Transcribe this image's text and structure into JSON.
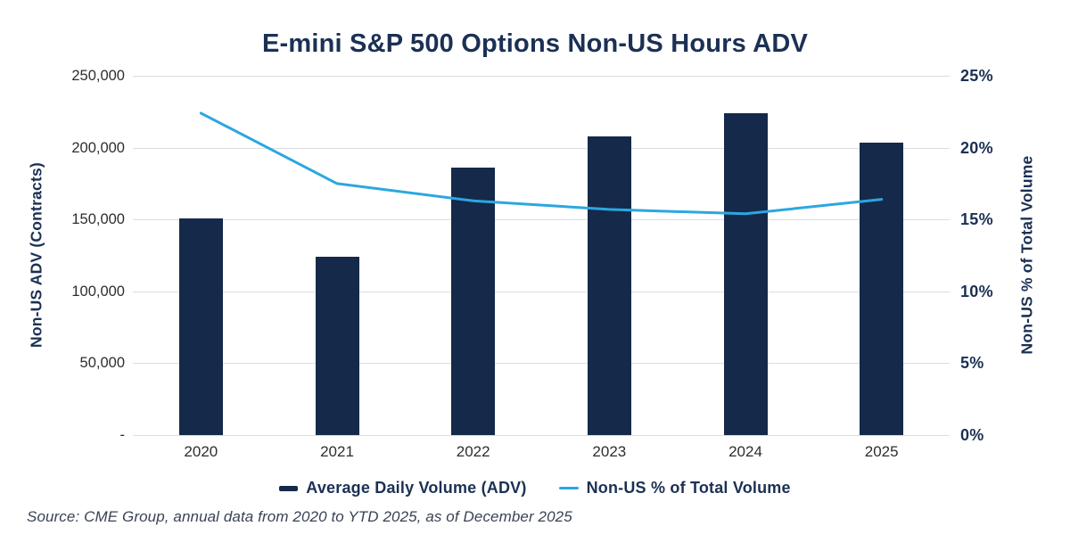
{
  "chart_data": {
    "type": "bar",
    "title": "E-mini S&P 500 Options Non-US Hours ADV",
    "categories": [
      "2020",
      "2021",
      "2022",
      "2023",
      "2024",
      "2025"
    ],
    "series": [
      {
        "name": "Average Daily Volume (ADV)",
        "type": "bar",
        "axis": "left",
        "color": "#15294A",
        "values": [
          151000,
          124000,
          186000,
          208000,
          224000,
          203500
        ]
      },
      {
        "name": "Non-US % of Total Volume",
        "type": "line",
        "axis": "right",
        "color": "#2BA7E0",
        "values": [
          22.4,
          17.5,
          16.3,
          15.7,
          15.4,
          16.4
        ]
      }
    ],
    "left_axis": {
      "label": "Non-US ADV (Contracts)",
      "ticks": [
        "250,000",
        "200,000",
        "150,000",
        "100,000",
        "50,000",
        "-"
      ],
      "range": [
        0,
        250000
      ]
    },
    "right_axis": {
      "label": "Non-US % of Total Volume",
      "ticks": [
        "25%",
        "20%",
        "15%",
        "10%",
        "5%",
        "0%"
      ],
      "range": [
        0,
        25
      ]
    },
    "grid": "horizontal",
    "legend_position": "bottom",
    "grid_color": "#D9DDE2",
    "source": "Source: CME Group, annual data from 2020 to YTD 2025, as of December 2025"
  }
}
